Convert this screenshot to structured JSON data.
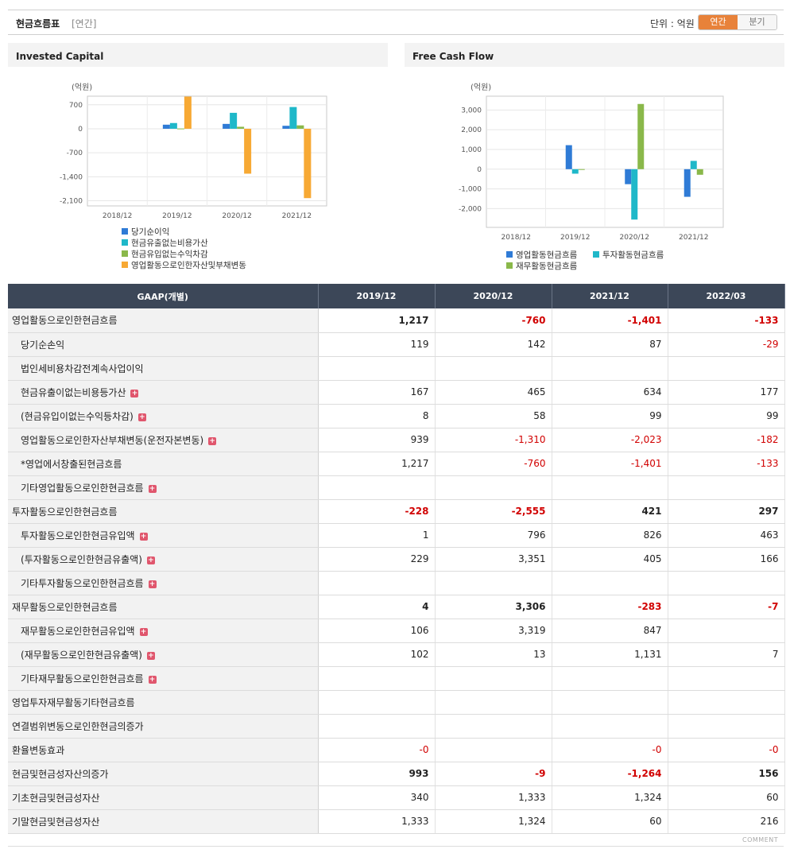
{
  "header": {
    "title": "현금흐름표",
    "period_note": "[연간]",
    "unit": "단위 : 억원",
    "toggle": [
      "연간",
      "분기"
    ],
    "active_toggle": "연간",
    "accent": "#e8823a"
  },
  "chart_data": [
    {
      "type": "bar",
      "title": "Invested Capital",
      "unit_label": "(억원)",
      "categories": [
        "2018/12",
        "2019/12",
        "2020/12",
        "2021/12"
      ],
      "yticks": [
        700,
        0,
        -700,
        -1400,
        -2100
      ],
      "ytick_labels": [
        "700",
        "0",
        "-700",
        "-1,400",
        "-2,100"
      ],
      "ylim": [
        -2250,
        950
      ],
      "series": [
        {
          "name": "당기순이익",
          "color": "#2f7bd6",
          "values": [
            null,
            119,
            142,
            87
          ]
        },
        {
          "name": "현금유출없는비용가산",
          "color": "#1fb8c9",
          "values": [
            null,
            167,
            465,
            634
          ]
        },
        {
          "name": "현금유입없는수익차감",
          "color": "#8ab84a",
          "values": [
            null,
            8,
            58,
            99
          ]
        },
        {
          "name": "영업활동으로인한자산및부채변동",
          "color": "#f7a934",
          "values": [
            null,
            939,
            -1310,
            -2023
          ]
        }
      ],
      "legend_position": "bottom"
    },
    {
      "type": "bar",
      "title": "Free Cash Flow",
      "unit_label": "(억원)",
      "categories": [
        "2018/12",
        "2019/12",
        "2020/12",
        "2021/12"
      ],
      "yticks": [
        3000,
        2000,
        1000,
        0,
        -1000,
        -2000
      ],
      "ytick_labels": [
        "3,000",
        "2,000",
        "1,000",
        "0",
        "-1,000",
        "-2,000"
      ],
      "ylim": [
        -2950,
        3700
      ],
      "series": [
        {
          "name": "영업활동현금흐름",
          "color": "#2f7bd6",
          "values": [
            null,
            1217,
            -760,
            -1401
          ]
        },
        {
          "name": "투자활동현금흐름",
          "color": "#1fb8c9",
          "values": [
            null,
            -228,
            -2555,
            421
          ]
        },
        {
          "name": "재무활동현금흐름",
          "color": "#8ab84a",
          "values": [
            null,
            4,
            3306,
            -283
          ]
        }
      ],
      "legend_position": "bottom"
    }
  ],
  "table": {
    "corner": "GAAP(개별)",
    "columns": [
      "2019/12",
      "2020/12",
      "2021/12",
      "2022/03"
    ],
    "rows": [
      {
        "label": "영업활동으로인한현금흐름",
        "type": "main",
        "plus": false,
        "values": [
          "1,217",
          "-760",
          "-1,401",
          "-133"
        ]
      },
      {
        "label": "당기순손익",
        "type": "sub",
        "plus": false,
        "values": [
          "119",
          "142",
          "87",
          "-29"
        ]
      },
      {
        "label": "법인세비용차감전계속사업이익",
        "type": "sub",
        "plus": false,
        "values": [
          "",
          "",
          "",
          ""
        ]
      },
      {
        "label": "현금유출이없는비용등가산",
        "type": "sub",
        "plus": true,
        "values": [
          "167",
          "465",
          "634",
          "177"
        ]
      },
      {
        "label": "(현금유입이없는수익등차감)",
        "type": "sub",
        "plus": true,
        "values": [
          "8",
          "58",
          "99",
          "99"
        ]
      },
      {
        "label": "영업활동으로인한자산부채변동(운전자본변동)",
        "type": "sub",
        "plus": true,
        "values": [
          "939",
          "-1,310",
          "-2,023",
          "-182"
        ]
      },
      {
        "label": "*영업에서창출된현금흐름",
        "type": "sub",
        "plus": false,
        "values": [
          "1,217",
          "-760",
          "-1,401",
          "-133"
        ]
      },
      {
        "label": "기타영업활동으로인한현금흐름",
        "type": "sub",
        "plus": true,
        "values": [
          "",
          "",
          "",
          ""
        ]
      },
      {
        "label": "투자활동으로인한현금흐름",
        "type": "main",
        "plus": false,
        "values": [
          "-228",
          "-2,555",
          "421",
          "297"
        ]
      },
      {
        "label": "투자활동으로인한현금유입액",
        "type": "sub",
        "plus": true,
        "values": [
          "1",
          "796",
          "826",
          "463"
        ]
      },
      {
        "label": "(투자활동으로인한현금유출액)",
        "type": "sub",
        "plus": true,
        "values": [
          "229",
          "3,351",
          "405",
          "166"
        ]
      },
      {
        "label": "기타투자활동으로인한현금흐름",
        "type": "sub",
        "plus": true,
        "values": [
          "",
          "",
          "",
          ""
        ]
      },
      {
        "label": "재무활동으로인한현금흐름",
        "type": "main",
        "plus": false,
        "values": [
          "4",
          "3,306",
          "-283",
          "-7"
        ]
      },
      {
        "label": "재무활동으로인한현금유입액",
        "type": "sub",
        "plus": true,
        "values": [
          "106",
          "3,319",
          "847",
          ""
        ]
      },
      {
        "label": "(재무활동으로인한현금유출액)",
        "type": "sub",
        "plus": true,
        "values": [
          "102",
          "13",
          "1,131",
          "7"
        ]
      },
      {
        "label": "기타재무활동으로인한현금흐름",
        "type": "sub",
        "plus": true,
        "values": [
          "",
          "",
          "",
          ""
        ]
      },
      {
        "label": "영업투자재무활동기타현금흐름",
        "type": "plain",
        "plus": false,
        "values": [
          "",
          "",
          "",
          ""
        ]
      },
      {
        "label": "연결범위변동으로인한현금의증가",
        "type": "plain",
        "plus": false,
        "values": [
          "",
          "",
          "",
          ""
        ]
      },
      {
        "label": "환율변동효과",
        "type": "plain",
        "plus": false,
        "values": [
          "-0",
          "",
          "-0",
          "-0"
        ]
      },
      {
        "label": "현금및현금성자산의증가",
        "type": "main",
        "plus": false,
        "values": [
          "993",
          "-9",
          "-1,264",
          "156"
        ]
      },
      {
        "label": "기초현금및현금성자산",
        "type": "plain",
        "plus": false,
        "values": [
          "340",
          "1,333",
          "1,324",
          "60"
        ]
      },
      {
        "label": "기말현금및현금성자산",
        "type": "plain",
        "plus": false,
        "values": [
          "1,333",
          "1,324",
          "60",
          "216"
        ]
      }
    ]
  },
  "footer": {
    "comment": "COMMENT"
  }
}
